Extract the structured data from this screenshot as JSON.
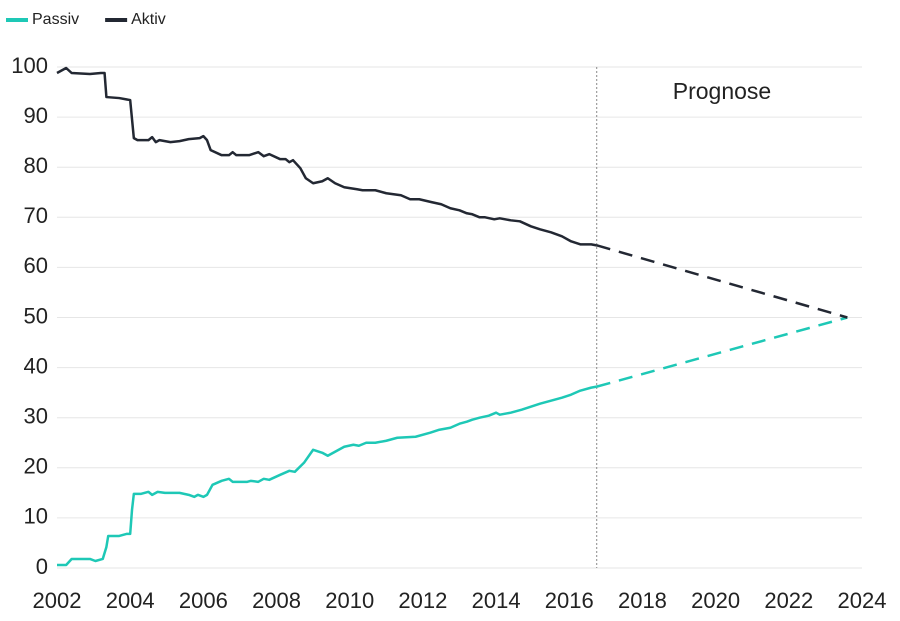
{
  "chart_data": {
    "type": "line",
    "annotation": "Prognose",
    "forecast_start": 2016.75,
    "xlim": [
      2002,
      2024
    ],
    "xticks": [
      2002,
      2004,
      2006,
      2008,
      2010,
      2012,
      2014,
      2016,
      2018,
      2020,
      2022,
      2024
    ],
    "ylim": [
      0,
      100
    ],
    "yticks": [
      0,
      10,
      20,
      30,
      40,
      50,
      60,
      70,
      80,
      90,
      100
    ],
    "grid": true,
    "legend": "top-left",
    "series": [
      {
        "name": "Passiv",
        "color": "#1ec8b6",
        "x": [
          2002,
          2002.25,
          2002.4,
          2002.9,
          2003.05,
          2003.25,
          2003.35,
          2003.4,
          2003.7,
          2003.9,
          2004.0,
          2004.05,
          2004.1,
          2004.3,
          2004.5,
          2004.6,
          2004.75,
          2004.95,
          2005.35,
          2005.6,
          2005.75,
          2005.85,
          2006.0,
          2006.1,
          2006.25,
          2006.5,
          2006.7,
          2006.8,
          2007.2,
          2007.3,
          2007.5,
          2007.65,
          2007.8,
          2008.1,
          2008.35,
          2008.5,
          2008.75,
          2009,
          2009.25,
          2009.4,
          2009.6,
          2009.85,
          2010.1,
          2010.25,
          2010.45,
          2010.7,
          2011,
          2011.3,
          2011.8,
          2012.2,
          2012.45,
          2012.75,
          2013,
          2013.2,
          2013.35,
          2013.55,
          2013.8,
          2014,
          2014.1,
          2014.4,
          2014.7,
          2014.95,
          2015.2,
          2015.5,
          2015.8,
          2016.05,
          2016.3,
          2016.6,
          2016.75,
          2023.6
        ],
        "values": [
          0.6,
          0.6,
          1.8,
          1.8,
          1.4,
          1.8,
          4.2,
          6.4,
          6.4,
          6.8,
          6.8,
          11.6,
          14.8,
          14.8,
          15.2,
          14.6,
          15.2,
          15,
          15,
          14.6,
          14.2,
          14.6,
          14.2,
          14.6,
          16.6,
          17.4,
          17.8,
          17.2,
          17.2,
          17.4,
          17.2,
          17.8,
          17.6,
          18.6,
          19.4,
          19.2,
          21,
          23.6,
          23,
          22.4,
          23.2,
          24.2,
          24.6,
          24.4,
          25,
          25,
          25.4,
          26,
          26.2,
          27,
          27.6,
          28,
          28.8,
          29.2,
          29.6,
          30,
          30.4,
          31,
          30.6,
          31,
          31.6,
          32.2,
          32.8,
          33.4,
          34,
          34.6,
          35.4,
          36,
          36.2,
          50
        ]
      },
      {
        "name": "Aktiv",
        "color": "#232833",
        "x": [
          2002,
          2002.25,
          2002.4,
          2002.9,
          2003.2,
          2003.3,
          2003.35,
          2003.7,
          2004.0,
          2004.1,
          2004.2,
          2004.5,
          2004.6,
          2004.7,
          2004.8,
          2005.1,
          2005.35,
          2005.6,
          2005.9,
          2006.0,
          2006.1,
          2006.2,
          2006.5,
          2006.7,
          2006.8,
          2006.9,
          2007.25,
          2007.5,
          2007.65,
          2007.8,
          2008.1,
          2008.25,
          2008.35,
          2008.45,
          2008.65,
          2008.8,
          2009,
          2009.25,
          2009.4,
          2009.6,
          2009.85,
          2010.2,
          2010.35,
          2010.7,
          2011,
          2011.4,
          2011.65,
          2011.9,
          2012.25,
          2012.5,
          2012.75,
          2013,
          2013.2,
          2013.35,
          2013.55,
          2013.7,
          2013.95,
          2014.1,
          2014.4,
          2014.65,
          2014.95,
          2015.2,
          2015.5,
          2015.8,
          2016.05,
          2016.3,
          2016.6,
          2016.75,
          2023.6
        ],
        "values": [
          98.8,
          99.8,
          98.8,
          98.6,
          98.8,
          98.8,
          94,
          93.8,
          93.4,
          85.8,
          85.4,
          85.4,
          86,
          85,
          85.4,
          85,
          85.2,
          85.6,
          85.8,
          86.2,
          85.4,
          83.4,
          82.4,
          82.4,
          83,
          82.4,
          82.4,
          83,
          82.2,
          82.6,
          81.6,
          81.6,
          81,
          81.4,
          79.8,
          77.8,
          76.8,
          77.2,
          77.8,
          76.8,
          76,
          75.6,
          75.4,
          75.4,
          74.8,
          74.4,
          73.6,
          73.6,
          73,
          72.6,
          71.8,
          71.4,
          70.8,
          70.6,
          70,
          70,
          69.6,
          69.8,
          69.4,
          69.2,
          68.2,
          67.6,
          67,
          66.2,
          65.2,
          64.6,
          64.6,
          64.4,
          50
        ]
      }
    ]
  }
}
